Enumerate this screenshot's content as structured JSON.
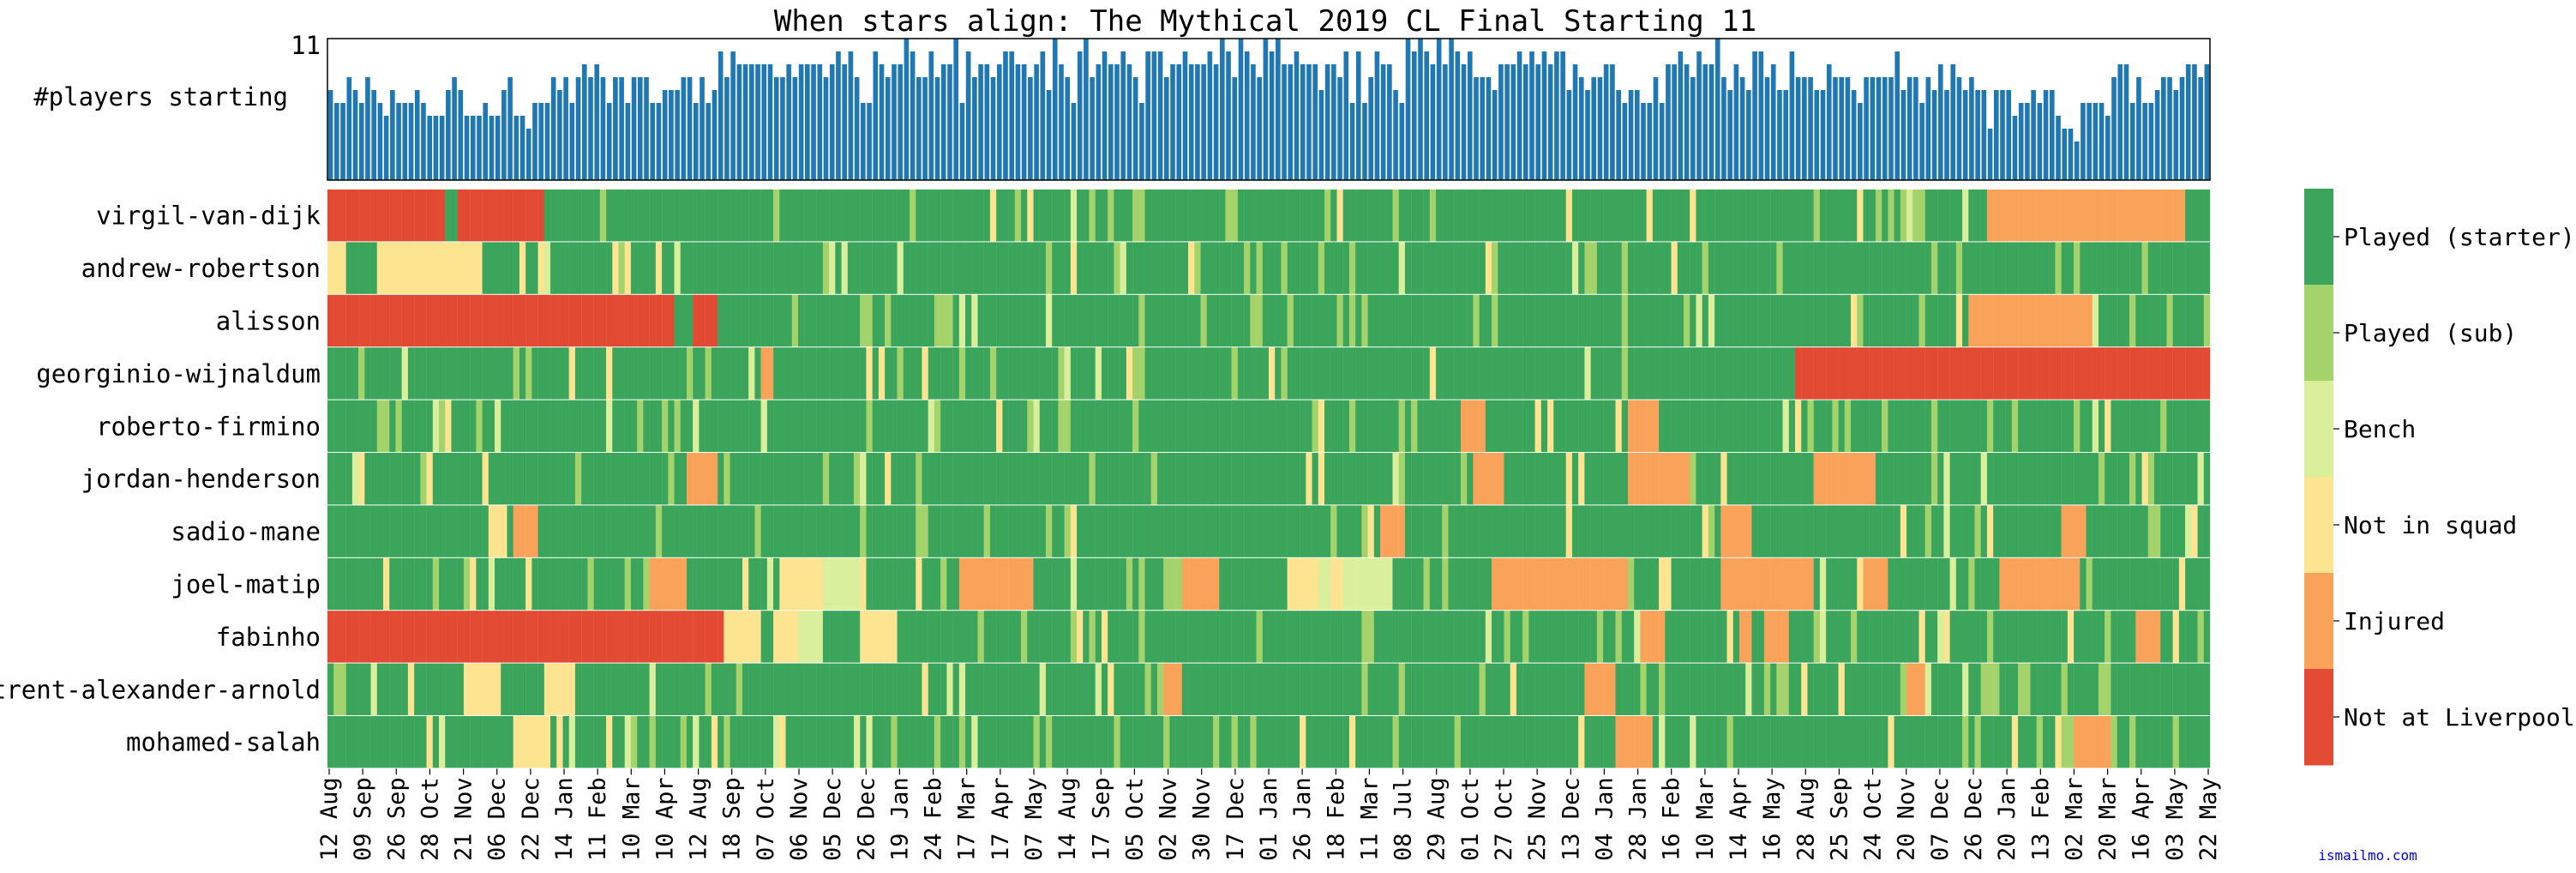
{
  "chart_data": {
    "type": "heatmap",
    "title": "When stars align: The Mythical 2019 CL Final Starting 11",
    "top_panel": {
      "type": "bar",
      "ylabel": "#players starting",
      "ymax_label": "11",
      "ylim": [
        0,
        11
      ]
    },
    "players": [
      "virgil-van-dijk",
      "andrew-robertson",
      "alisson",
      "georginio-wijnaldum",
      "roberto-firmino",
      "jordan-henderson",
      "sadio-mane",
      "joel-matip",
      "fabinho",
      "trent-alexander-arnold",
      "mohamed-salah"
    ],
    "x_ticks": [
      "12 Aug",
      "09 Sep",
      "26 Sep",
      "28 Oct",
      "21 Nov",
      "06 Dec",
      "22 Dec",
      "14 Jan",
      "11 Feb",
      "10 Mar",
      "10 Apr",
      "12 Aug",
      "18 Sep",
      "07 Oct",
      "06 Nov",
      "05 Dec",
      "26 Dec",
      "19 Jan",
      "24 Feb",
      "17 Mar",
      "17 Apr",
      "07 May",
      "14 Aug",
      "17 Sep",
      "05 Oct",
      "02 Nov",
      "30 Nov",
      "17 Dec",
      "01 Jan",
      "26 Jan",
      "18 Feb",
      "11 Mar",
      "08 Jul",
      "29 Aug",
      "01 Oct",
      "27 Oct",
      "25 Nov",
      "13 Dec",
      "04 Jan",
      "28 Jan",
      "16 Feb",
      "10 Mar",
      "14 Apr",
      "16 May",
      "28 Aug",
      "25 Sep",
      "24 Oct",
      "20 Nov",
      "07 Dec",
      "26 Dec",
      "20 Jan",
      "13 Feb",
      "02 Mar",
      "20 Mar",
      "16 Apr",
      "03 May",
      "22 May"
    ],
    "legend": {
      "placement": "right",
      "items": [
        {
          "label": "Played (starter)",
          "color": "#3ba55c"
        },
        {
          "label": "Played (sub)",
          "color": "#a3d36a"
        },
        {
          "label": "Bench",
          "color": "#d9ef9b"
        },
        {
          "label": "Not in squad",
          "color": "#fce491"
        },
        {
          "label": "Injured",
          "color": "#f9a25a"
        },
        {
          "label": "Not at Liverpool",
          "color": "#e34a33"
        }
      ]
    },
    "credit": "ismailmo.com"
  }
}
